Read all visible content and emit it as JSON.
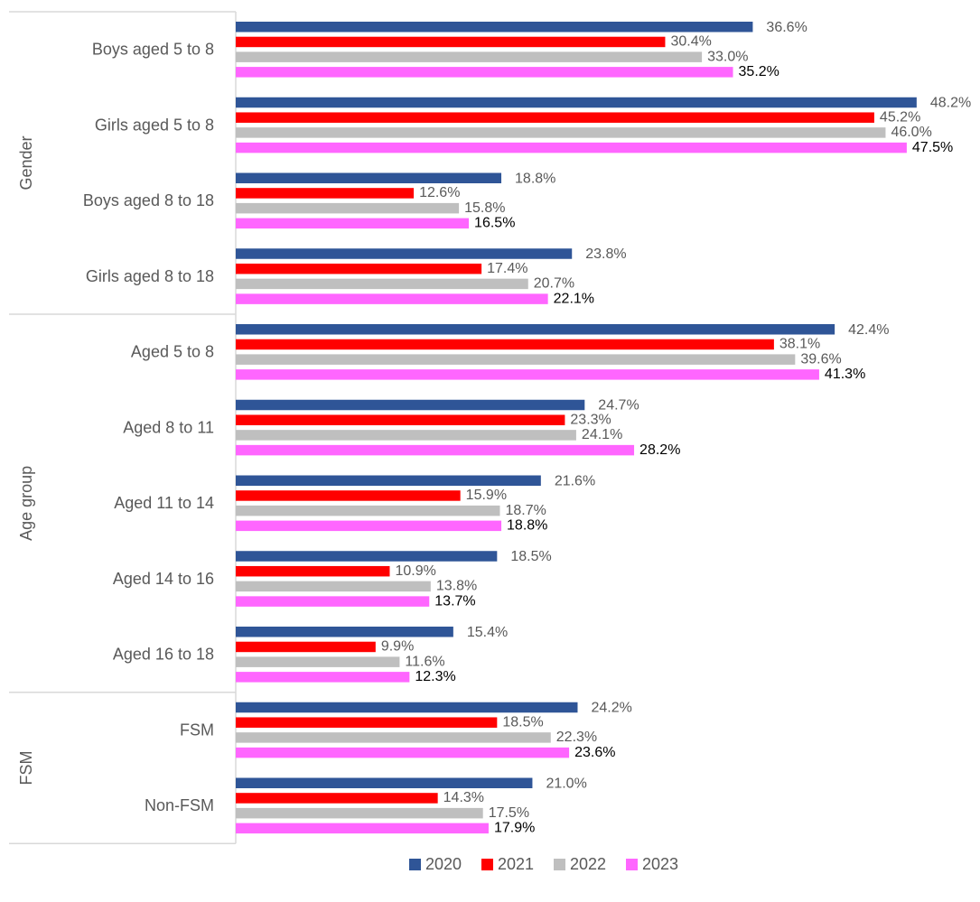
{
  "chart_data": {
    "type": "bar",
    "orientation": "horizontal",
    "groups": [
      {
        "name": "Gender",
        "categories": [
          "Boys aged 5 to 8",
          "Girls aged 5 to 8",
          "Boys aged 8 to 18",
          "Girls aged 8 to 18"
        ]
      },
      {
        "name": "Age group",
        "categories": [
          "Aged 5 to 8",
          "Aged 8 to 11",
          "Aged 11 to 14",
          "Aged 14 to 16",
          "Aged 16 to 18"
        ]
      },
      {
        "name": "FSM",
        "categories": [
          "FSM",
          "Non-FSM"
        ]
      }
    ],
    "series": [
      {
        "name": "2020",
        "color": "#2f5597",
        "label_color": "#595959",
        "values": [
          36.6,
          48.2,
          18.8,
          23.8,
          42.4,
          24.7,
          21.6,
          18.5,
          15.4,
          24.2,
          21.0
        ],
        "value_labels": [
          "36.6%",
          "48.2%",
          "18.8%",
          "23.8%",
          "42.4%",
          "24.7%",
          "21.6%",
          "18.5%",
          "15.4%",
          "24.2%",
          "21.0%"
        ]
      },
      {
        "name": "2021",
        "color": "#ff0000",
        "label_color": "#595959",
        "values": [
          30.4,
          45.2,
          12.6,
          17.4,
          38.1,
          23.3,
          15.9,
          10.9,
          9.9,
          18.5,
          14.3
        ],
        "value_labels": [
          "30.4%",
          "45.2%",
          "12.6%",
          "17.4%",
          "38.1%",
          "23.3%",
          "15.9%",
          "10.9%",
          "9.9%",
          "18.5%",
          "14.3%"
        ]
      },
      {
        "name": "2022",
        "color": "#bfbfbf",
        "label_color": "#595959",
        "values": [
          33.0,
          46.0,
          15.8,
          20.7,
          39.6,
          24.1,
          18.7,
          13.8,
          11.6,
          22.3,
          17.5
        ],
        "value_labels": [
          "33.0%",
          "46.0%",
          "15.8%",
          "20.7%",
          "39.6%",
          "24.1%",
          "18.7%",
          "13.8%",
          "11.6%",
          "22.3%",
          "17.5%"
        ]
      },
      {
        "name": "2023",
        "color": "#ff66ff",
        "label_color": "#000000",
        "values": [
          35.2,
          47.5,
          16.5,
          22.1,
          41.3,
          28.2,
          18.8,
          13.7,
          12.3,
          23.6,
          17.9
        ],
        "value_labels": [
          "35.2%",
          "47.5%",
          "16.5%",
          "22.1%",
          "41.3%",
          "28.2%",
          "18.8%",
          "13.7%",
          "12.3%",
          "23.6%",
          "17.9%"
        ]
      }
    ],
    "legend": "bottom"
  }
}
